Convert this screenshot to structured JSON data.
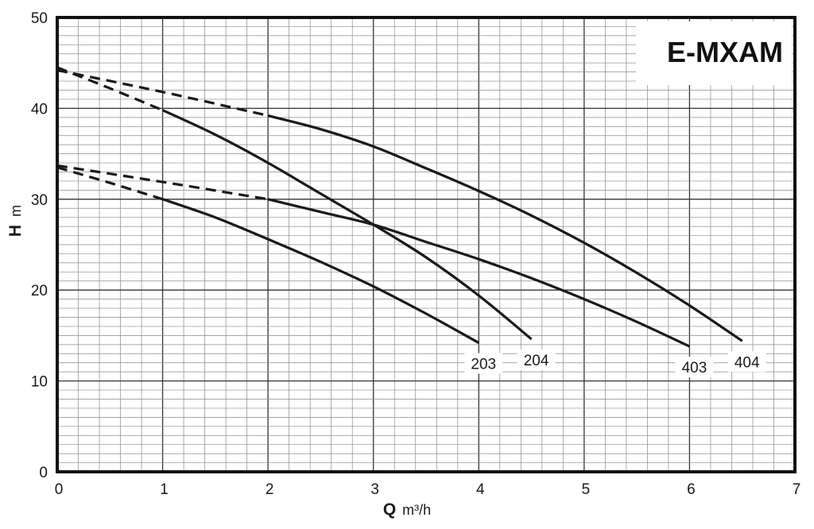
{
  "chart_data": {
    "type": "line",
    "title": "E-MXAM",
    "xlabel": {
      "symbol": "Q",
      "unit": "m³/h"
    },
    "ylabel": {
      "symbol": "H",
      "unit": "m"
    },
    "xlim": [
      0,
      7
    ],
    "ylim": [
      0,
      50
    ],
    "x_major_ticks": [
      "0",
      "1",
      "2",
      "3",
      "4",
      "5",
      "6",
      "7"
    ],
    "y_major_ticks": [
      "0",
      "10",
      "20",
      "30",
      "40",
      "50"
    ],
    "minor_grid": {
      "x_step": 0.2,
      "y_step": 1
    },
    "grid": true,
    "series": [
      {
        "name": "203",
        "dashed": [
          [
            0,
            33.5
          ],
          [
            0.5,
            31.8
          ],
          [
            1.0,
            30.0
          ]
        ],
        "solid": [
          [
            1.0,
            30.0
          ],
          [
            1.5,
            28.0
          ],
          [
            2.0,
            25.6
          ],
          [
            2.5,
            23.1
          ],
          [
            3.0,
            20.4
          ],
          [
            3.5,
            17.4
          ],
          [
            4.0,
            14.2
          ]
        ]
      },
      {
        "name": "204",
        "dashed": [
          [
            0,
            44.5
          ],
          [
            0.5,
            42.2
          ],
          [
            1.0,
            39.8
          ]
        ],
        "solid": [
          [
            1.0,
            39.8
          ],
          [
            1.5,
            37.1
          ],
          [
            2.0,
            34.0
          ],
          [
            2.5,
            30.6
          ],
          [
            3.0,
            27.2
          ],
          [
            3.5,
            23.6
          ],
          [
            4.0,
            19.4
          ],
          [
            4.5,
            14.6
          ]
        ]
      },
      {
        "name": "403",
        "dashed": [
          [
            0,
            33.7
          ],
          [
            1.0,
            31.9
          ],
          [
            2.0,
            30.0
          ]
        ],
        "solid": [
          [
            2.0,
            30.0
          ],
          [
            2.5,
            28.6
          ],
          [
            3.0,
            27.2
          ],
          [
            3.5,
            25.3
          ],
          [
            4.0,
            23.4
          ],
          [
            4.5,
            21.3
          ],
          [
            5.0,
            19.0
          ],
          [
            5.5,
            16.5
          ],
          [
            6.0,
            13.8
          ]
        ]
      },
      {
        "name": "404",
        "dashed": [
          [
            0,
            44.2
          ],
          [
            1.0,
            41.8
          ],
          [
            2.0,
            39.2
          ]
        ],
        "solid": [
          [
            2.0,
            39.2
          ],
          [
            2.5,
            37.7
          ],
          [
            3.0,
            35.8
          ],
          [
            3.5,
            33.4
          ],
          [
            4.0,
            30.9
          ],
          [
            4.5,
            28.2
          ],
          [
            5.0,
            25.2
          ],
          [
            5.5,
            21.9
          ],
          [
            6.0,
            18.3
          ],
          [
            6.5,
            14.4
          ]
        ]
      }
    ]
  },
  "style": {
    "curve_color": "#1a1a1a",
    "frame_color": "#111111",
    "grid_major_color": "#333333",
    "grid_minor_color": "#8a8a8a"
  }
}
